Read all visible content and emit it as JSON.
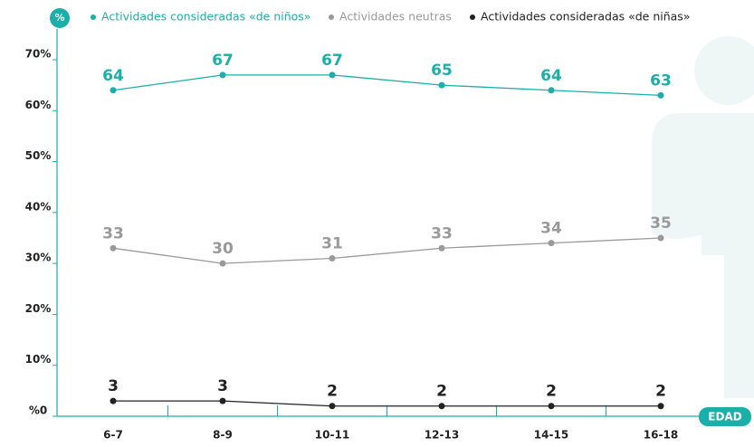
{
  "chart_data": {
    "type": "line",
    "y_label": "%",
    "x_label": "EDAD",
    "categories": [
      "6-7",
      "8-9",
      "10-11",
      "12-13",
      "14-15",
      "16-18"
    ],
    "series": [
      {
        "name": "Actividades consideradas «de niños»",
        "color": "#1aafa9",
        "values": [
          64,
          67,
          67,
          65,
          64,
          63
        ]
      },
      {
        "name": "Actividades neutras",
        "color": "#9a9a9a",
        "values": [
          33,
          30,
          31,
          33,
          34,
          35
        ]
      },
      {
        "name": "Actividades consideradas «de niñas»",
        "color": "#222222",
        "values": [
          3,
          3,
          2,
          2,
          2,
          2
        ]
      }
    ],
    "ylim": [
      0,
      70
    ],
    "yticks": [
      {
        "value": 0,
        "label": "%0"
      },
      {
        "value": 10,
        "label": "10%"
      },
      {
        "value": 20,
        "label": "20%"
      },
      {
        "value": 30,
        "label": "30%"
      },
      {
        "value": 40,
        "label": "40%"
      },
      {
        "value": 50,
        "label": "50%"
      },
      {
        "value": 60,
        "label": "60%"
      },
      {
        "value": 70,
        "label": "70%"
      }
    ],
    "grid": false,
    "legend": "top"
  }
}
